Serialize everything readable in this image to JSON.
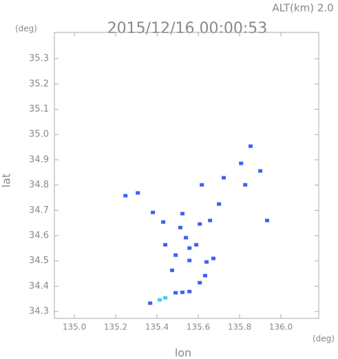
{
  "chart_data": {
    "type": "scatter",
    "title": "2015/12/16 00:00:53",
    "subtitle": "ALT(km) 2.0",
    "y_unit": "(deg)",
    "x_unit": "(deg)",
    "xlabel": "lon",
    "ylabel": "lat",
    "xlim": [
      134.903,
      136.183
    ],
    "ylim": [
      34.273,
      35.404
    ],
    "xticks": [
      {
        "value": 135.0,
        "label": "135.0"
      },
      {
        "value": 135.2,
        "label": "135.2"
      },
      {
        "value": 135.4,
        "label": "135.4"
      },
      {
        "value": 135.6,
        "label": "135.6"
      },
      {
        "value": 135.8,
        "label": "135.8"
      },
      {
        "value": 136.0,
        "label": "136.0"
      }
    ],
    "yticks": [
      {
        "value": 34.3,
        "label": "34.3"
      },
      34.4,
      34.5,
      34.6,
      34.7,
      34.8,
      34.9,
      {
        "value": 35.0,
        "label": "35.0"
      },
      35.1,
      35.2,
      35.3
    ],
    "series": [
      {
        "color": "#3f5ff2",
        "x": [
          135.247,
          135.307,
          135.38,
          135.43,
          135.523,
          135.513,
          135.54,
          135.557,
          135.557,
          135.59,
          135.64,
          135.657,
          135.607,
          135.673,
          135.633,
          135.607,
          135.523,
          135.557,
          135.49,
          135.367,
          135.473,
          135.49,
          135.617,
          135.723,
          135.807,
          135.853,
          135.9,
          135.827,
          135.933,
          135.7,
          135.44
        ],
        "y": [
          34.758,
          34.769,
          34.692,
          34.654,
          34.687,
          34.632,
          34.592,
          34.551,
          34.502,
          34.564,
          34.496,
          34.66,
          34.646,
          34.51,
          34.442,
          34.414,
          34.376,
          34.379,
          34.374,
          34.333,
          34.463,
          34.523,
          34.801,
          34.829,
          34.886,
          34.954,
          34.856,
          34.801,
          34.66,
          34.725,
          34.564
        ]
      },
      {
        "color": "#3fd0f0",
        "x": [
          135.44,
          135.413
        ],
        "y": [
          34.354,
          34.346
        ]
      }
    ]
  }
}
